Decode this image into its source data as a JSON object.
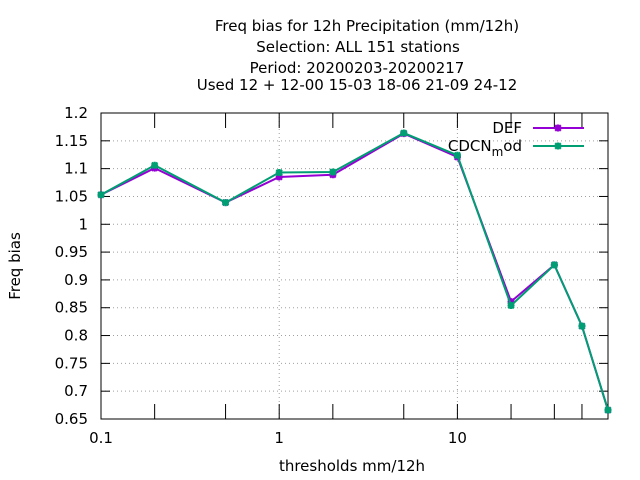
{
  "chart_data": {
    "type": "line",
    "title_lines": [
      "Freq bias  for 12h Precipitation (mm/12h)",
      "Selection: ALL    151 stations",
      "Period: 20200203-20200217",
      "Used  12 + 12-00 15-03 18-06 21-09 24-12"
    ],
    "xlabel": "thresholds mm/12h",
    "ylabel": "Freq bias",
    "x_scale": "log",
    "xlim": [
      0.1,
      70
    ],
    "ylim": [
      0.65,
      1.2
    ],
    "x_ticks": [
      {
        "value": 0.1,
        "label": "0.1"
      },
      {
        "value": 1,
        "label": "1"
      },
      {
        "value": 10,
        "label": "10"
      }
    ],
    "x_minor_ticks": [
      0.2,
      0.5,
      2,
      5,
      20,
      35,
      50
    ],
    "y_ticks": [
      {
        "value": 0.65,
        "label": "0.65"
      },
      {
        "value": 0.7,
        "label": "0.7"
      },
      {
        "value": 0.75,
        "label": "0.75"
      },
      {
        "value": 0.8,
        "label": "0.8"
      },
      {
        "value": 0.85,
        "label": "0.85"
      },
      {
        "value": 0.9,
        "label": "0.9"
      },
      {
        "value": 0.95,
        "label": "0.95"
      },
      {
        "value": 1.0,
        "label": "1"
      },
      {
        "value": 1.05,
        "label": "1.05"
      },
      {
        "value": 1.1,
        "label": "1.1"
      },
      {
        "value": 1.15,
        "label": "1.15"
      },
      {
        "value": 1.2,
        "label": "1.2"
      }
    ],
    "grid": true,
    "legend_position": "top-right",
    "series": [
      {
        "name": "DEF",
        "color": "#9400d3",
        "x": [
          0.1,
          0.2,
          0.5,
          1,
          2,
          5,
          10,
          20,
          35,
          50,
          70
        ],
        "y": [
          1.053,
          1.101,
          1.039,
          1.085,
          1.089,
          1.163,
          1.121,
          0.861,
          0.927,
          0.817,
          0.666
        ]
      },
      {
        "name": "CDCN",
        "name_subscript": "m",
        "name_suffix": "od",
        "color": "#009e73",
        "x": [
          0.1,
          0.2,
          0.5,
          1,
          2,
          5,
          10,
          20,
          35,
          50,
          70
        ],
        "y": [
          1.053,
          1.106,
          1.039,
          1.093,
          1.094,
          1.164,
          1.124,
          0.854,
          0.927,
          0.817,
          0.666
        ]
      }
    ]
  }
}
